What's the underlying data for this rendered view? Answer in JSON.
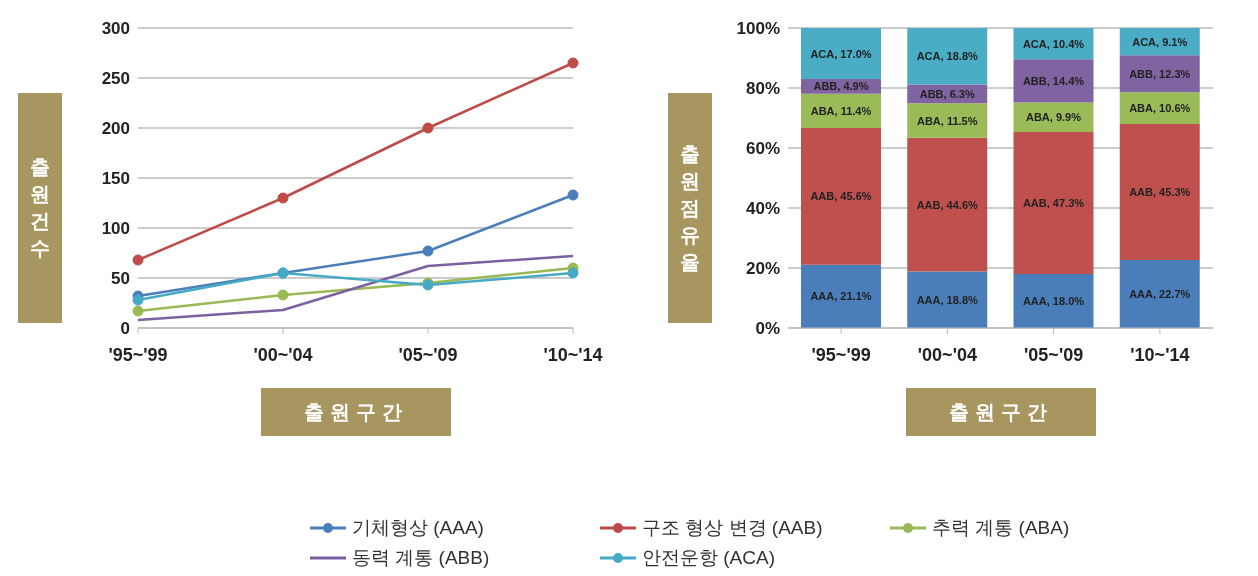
{
  "chart_data": [
    {
      "type": "line",
      "xlabel": "출원구간",
      "ylabel": "출원건수",
      "categories": [
        "'95~'99",
        "'00~'04",
        "'05~'09",
        "'10~'14"
      ],
      "ylim": [
        0,
        300
      ],
      "yticks": [
        0,
        50,
        100,
        150,
        200,
        250,
        300
      ],
      "grid": "y",
      "legend": "bottom",
      "series": [
        {
          "name": "기체형상 (AAA)",
          "color": "#4a7ebb",
          "marker": "circle",
          "values": [
            32,
            55,
            77,
            133
          ]
        },
        {
          "name": "구조 형상 변경 (AAB)",
          "color": "#be4b48",
          "marker": "circle",
          "values": [
            68,
            130,
            200,
            265
          ]
        },
        {
          "name": "추력 계통 (ABA)",
          "color": "#98b954",
          "marker": "circle",
          "values": [
            17,
            33,
            45,
            60
          ]
        },
        {
          "name": "동력 계통 (ABB)",
          "color": "#7d60a0",
          "marker": "none",
          "values": [
            8,
            18,
            62,
            72
          ]
        },
        {
          "name": "안전운항 (ACA)",
          "color": "#46aac5",
          "marker": "circle",
          "values": [
            28,
            55,
            43,
            55
          ]
        }
      ]
    },
    {
      "type": "bar",
      "stacked": true,
      "xlabel": "출원구간",
      "ylabel": "출원점유율",
      "categories": [
        "'95~'99",
        "'00~'04",
        "'05~'09",
        "'10~'14"
      ],
      "ylim": [
        0,
        100
      ],
      "yticks": [
        {
          "value": 0,
          "label": "0%"
        },
        {
          "value": 20,
          "label": "20%"
        },
        {
          "value": 40,
          "label": "40%"
        },
        {
          "value": 60,
          "label": "60%"
        },
        {
          "value": 80,
          "label": "80%"
        },
        {
          "value": 100,
          "label": "100%"
        }
      ],
      "grid": "y",
      "series": [
        {
          "color": "#4a7ebb",
          "values": [
            21.1,
            18.8,
            18.0,
            22.7
          ],
          "value_labels": [
            "AAA, 21.1%",
            "AAA, 18.8%",
            "AAA, 18.0%",
            "AAA, 22.7%"
          ]
        },
        {
          "color": "#c0504d",
          "values": [
            45.6,
            44.6,
            47.3,
            45.3
          ],
          "value_labels": [
            "AAB, 45.6%",
            "AAB, 44.6%",
            "AAB, 47.3%",
            "AAB, 45.3%"
          ]
        },
        {
          "color": "#9bbb59",
          "values": [
            11.4,
            11.5,
            9.9,
            10.6
          ],
          "value_labels": [
            "ABA, 11.4%",
            "ABA, 11.5%",
            "ABA, 9.9%",
            "ABA, 10.6%"
          ]
        },
        {
          "color": "#8064a2",
          "values": [
            4.9,
            6.3,
            14.4,
            12.3
          ],
          "value_labels": [
            "ABB, 4.9%",
            "ABB, 6.3%",
            "ABB, 14.4%",
            "ABB, 12.3%"
          ]
        },
        {
          "color": "#4bacc6",
          "values": [
            17.0,
            18.8,
            10.4,
            9.1
          ],
          "value_labels": [
            "ACA, 17.0%",
            "ACA, 18.8%",
            "ACA, 10.4%",
            "ACA, 9.1%"
          ]
        }
      ]
    }
  ]
}
